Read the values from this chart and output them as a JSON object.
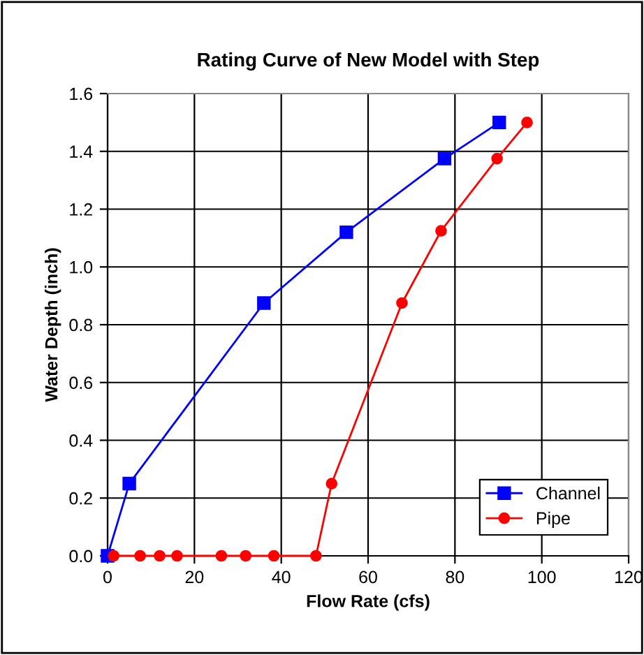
{
  "chart_data": {
    "type": "line",
    "title": "Rating Curve of New Model with Step",
    "xlabel": "Flow Rate (cfs)",
    "ylabel": "Water Depth (inch)",
    "series": [
      {
        "name": "Channel",
        "color": "#0000ff",
        "marker": "square",
        "x": [
          0,
          5,
          36,
          55,
          77.6,
          90.2
        ],
        "values": [
          0,
          0.25,
          0.875,
          1.12,
          1.375,
          1.5
        ]
      },
      {
        "name": "Pipe",
        "color": "#ff0000",
        "marker": "circle",
        "x": [
          1.4,
          7.5,
          12,
          16,
          26.2,
          31.8,
          38.3,
          48,
          51.6,
          67.8,
          76.8,
          89.7,
          96.6
        ],
        "values": [
          0,
          0,
          0,
          0,
          0,
          0,
          0,
          0,
          0.25,
          0.875,
          1.125,
          1.375,
          1.5
        ]
      }
    ],
    "xlim": [
      0,
      120
    ],
    "xticks": [
      0,
      20,
      40,
      60,
      80,
      100,
      120
    ],
    "ylim": [
      0,
      1.6
    ],
    "yticks": [
      {
        "value": 0,
        "label": "0.0"
      },
      {
        "value": 0.2,
        "label": "0.2"
      },
      {
        "value": 0.4,
        "label": "0.4"
      },
      {
        "value": 0.6,
        "label": "0.6"
      },
      {
        "value": 0.8,
        "label": "0.8"
      },
      {
        "value": 1.0,
        "label": "1.0"
      },
      {
        "value": 1.2,
        "label": "1.2"
      },
      {
        "value": 1.4,
        "label": "1.4"
      },
      {
        "value": 1.6,
        "label": "1.6"
      }
    ],
    "grid": true,
    "legend": "bottom right",
    "line_style": "solid"
  }
}
